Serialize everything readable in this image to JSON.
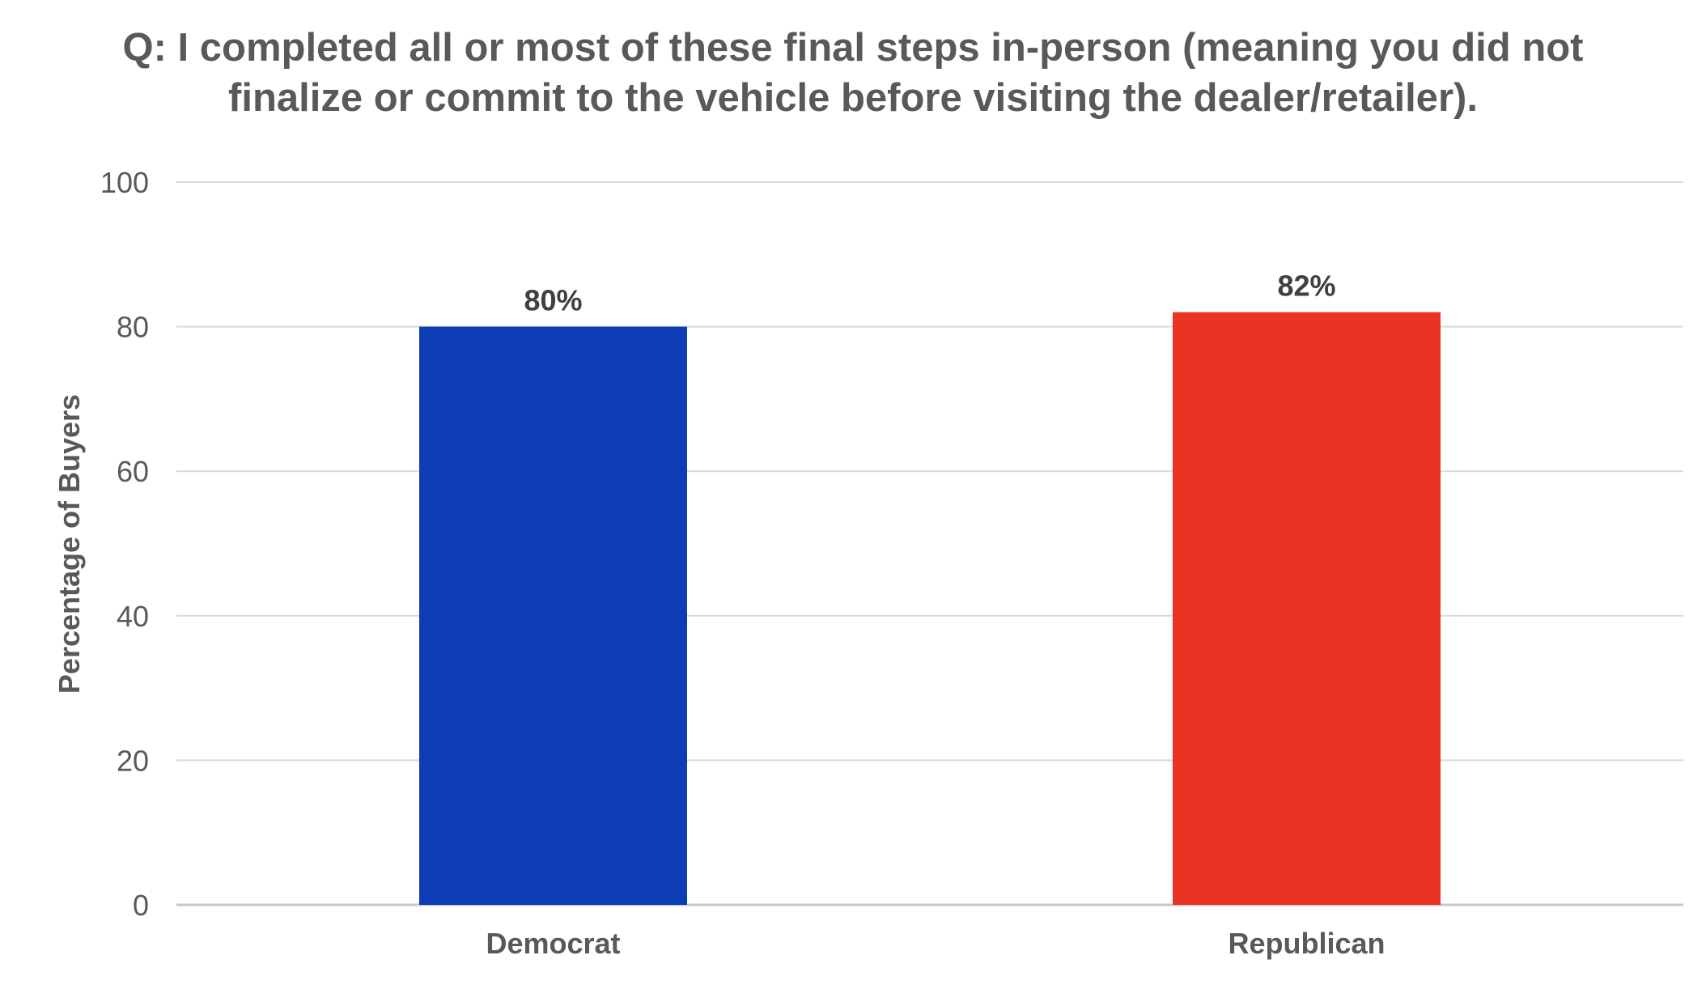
{
  "chart_data": {
    "type": "bar",
    "title_lines": [
      "Q: I completed all or most of these final steps in-person (meaning you did not",
      "finalize or commit to the vehicle before visiting the dealer/retailer)."
    ],
    "xlabel": "",
    "ylabel": "Percentage of Buyers",
    "categories": [
      "Democrat",
      "Republican"
    ],
    "values": [
      80,
      82
    ],
    "data_labels": [
      "80%",
      "82%"
    ],
    "colors": [
      "#0c3db5",
      "#eb3324"
    ],
    "ylim": [
      0,
      100
    ],
    "yticks": [
      "0",
      "20",
      "40",
      "60",
      "80",
      "100"
    ],
    "grid": true,
    "legend": "none"
  }
}
